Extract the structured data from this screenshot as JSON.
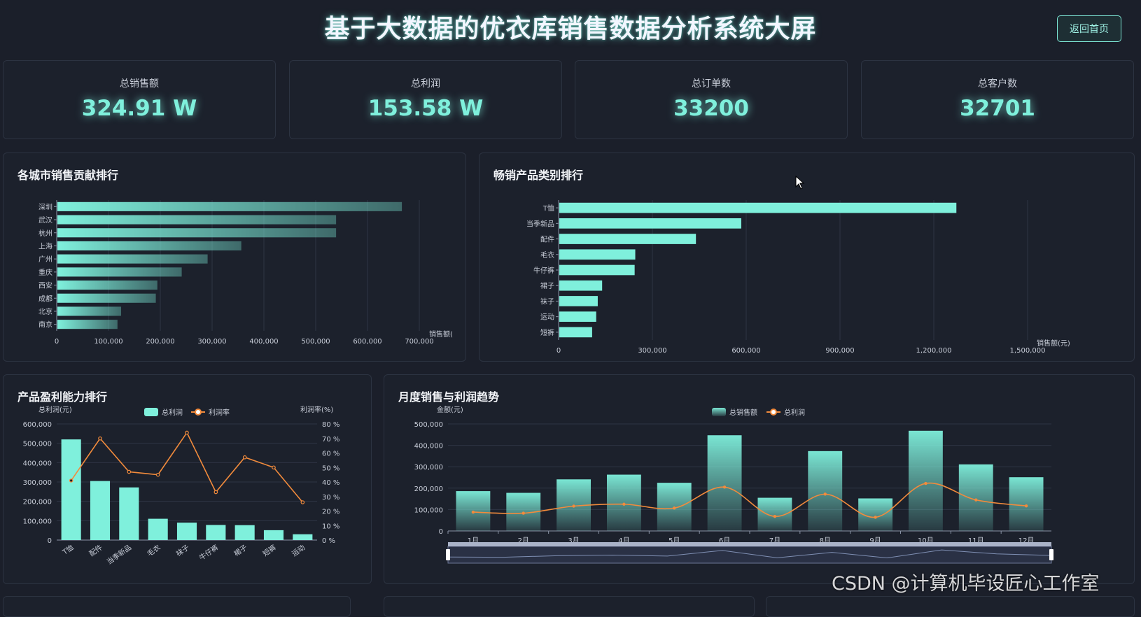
{
  "header": {
    "title": "基于大数据的优衣库销售数据分析系统大屏",
    "back_label": "返回首页"
  },
  "kpis": [
    {
      "label": "总销售额",
      "value": "324.91 W"
    },
    {
      "label": "总利润",
      "value": "153.58 W"
    },
    {
      "label": "总订单数",
      "value": "33200"
    },
    {
      "label": "总客户数",
      "value": "32701"
    }
  ],
  "panels": {
    "city": {
      "title": "各城市销售贡献排行"
    },
    "category": {
      "title": "畅销产品类别排行"
    },
    "profit": {
      "title": "产品盈利能力排行"
    },
    "monthly": {
      "title": "月度销售与利润趋势"
    }
  },
  "colors": {
    "accent": "#7ff0dc",
    "line": "#f28b3c"
  },
  "watermark": "CSDN @计算机毕设匠心工作室",
  "chart_data": [
    {
      "type": "bar",
      "orientation": "horizontal",
      "categories": [
        "深圳",
        "武汉",
        "杭州",
        "上海",
        "广州",
        "重庆",
        "西安",
        "成都",
        "北京",
        "南京"
      ],
      "values": [
        665000,
        538000,
        538000,
        355000,
        290000,
        240000,
        193000,
        190000,
        123000,
        116000
      ],
      "xlabel": "销售额(",
      "xlim": [
        0,
        700000
      ],
      "xticks": [
        "0",
        "100,000",
        "200,000",
        "300,000",
        "400,000",
        "500,000",
        "600,000",
        "700,000"
      ]
    },
    {
      "type": "bar",
      "orientation": "horizontal",
      "categories": [
        "T恤",
        "当季新品",
        "配件",
        "毛衣",
        "牛仔裤",
        "裙子",
        "袜子",
        "运动",
        "短裤"
      ],
      "values": [
        1270000,
        582000,
        437000,
        243000,
        241000,
        137000,
        123000,
        118000,
        105000
      ],
      "xlabel": "销售额(元)",
      "xlim": [
        0,
        1500000
      ],
      "xticks": [
        "0",
        "300,000",
        "600,000",
        "900,000",
        "1,200,000",
        "1,500,000"
      ]
    },
    {
      "type": "bar",
      "categories": [
        "T恤",
        "配件",
        "当季新品",
        "毛衣",
        "袜子",
        "牛仔裤",
        "裙子",
        "短裤",
        "运动"
      ],
      "series": [
        {
          "name": "总利润",
          "type": "bar",
          "values": [
            520000,
            305000,
            272000,
            110000,
            90000,
            78000,
            77000,
            51000,
            30000
          ]
        },
        {
          "name": "利润率",
          "type": "line",
          "axis": "right",
          "values": [
            41,
            70,
            47,
            45,
            74,
            33,
            57,
            50,
            26
          ]
        }
      ],
      "ylabel": "总利润(元)",
      "ylabel_right": "利润率(%)",
      "ylim": [
        0,
        600000
      ],
      "ylim_right": [
        0,
        80
      ],
      "yticks": [
        "0",
        "100,000",
        "200,000",
        "300,000",
        "400,000",
        "500,000",
        "600,000"
      ],
      "yticks_right": [
        "0 %",
        "10 %",
        "20 %",
        "30 %",
        "40 %",
        "50 %",
        "60 %",
        "70 %",
        "80 %"
      ],
      "legend": "top-center"
    },
    {
      "type": "bar",
      "categories": [
        "1月",
        "2月",
        "3月",
        "4月",
        "5月",
        "6月",
        "7月",
        "8月",
        "9月",
        "10月",
        "11月",
        "12月"
      ],
      "series": [
        {
          "name": "总销售额",
          "type": "bar",
          "values": [
            186000,
            178000,
            241000,
            263000,
            225000,
            447000,
            155000,
            373000,
            152000,
            468000,
            311000,
            251000
          ]
        },
        {
          "name": "总利润",
          "type": "line",
          "values": [
            88000,
            83000,
            116000,
            125000,
            107000,
            205000,
            68000,
            172000,
            64000,
            222000,
            145000,
            117000
          ]
        }
      ],
      "ylabel": "金额(元)",
      "ylim": [
        0,
        500000
      ],
      "yticks": [
        "0",
        "100,000",
        "200,000",
        "300,000",
        "400,000",
        "500,000"
      ],
      "legend": "top-center",
      "datazoom": true
    }
  ]
}
